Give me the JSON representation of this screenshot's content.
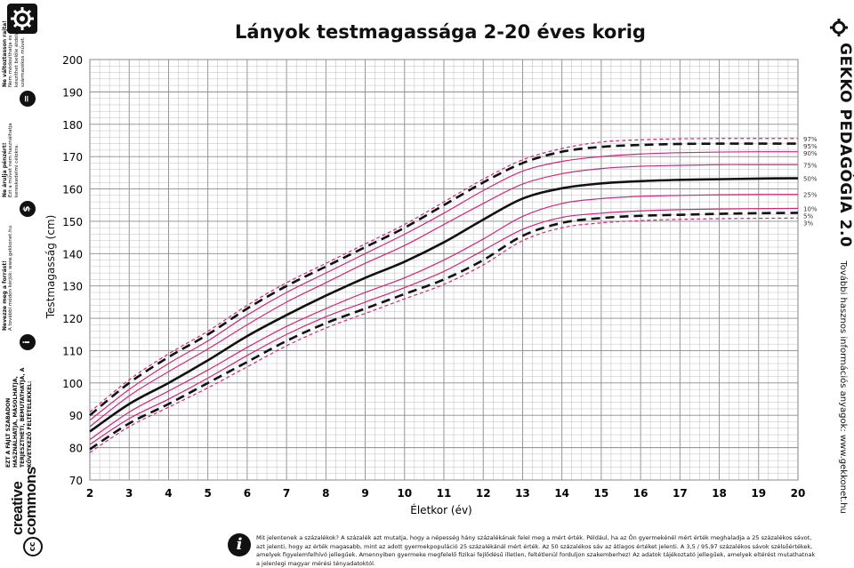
{
  "title": "Lányok testmagassága 2-20 éves korig",
  "brand": "GEKKO PEDAGÓGIA 2.0",
  "more_info": "További hasznos információs anyagok: www.gekkonet.hu",
  "footnote": "Mit jelentenek a százalékok? A százalék azt mutatja, hogy a népesség hány százalékának felel meg a mért érték. Például, ha az Ön gyermekénél mért érték meghaladja a 25 százalékos sávot, azt jelenti, hogy az érték magasabb, mint az adott gyermekpopuláció 25 százalékánál mért érték. Az 50 százalékos sáv az átlagos értéket jelenti. A 3,5 / 95,97 százalékos sávok szélsőértékek, amelyek figyelemfelhívó jellegűek. Amennyiben gyermeke megfelelő fizikai fejlődésű illetlen, feltétlenül forduljon szakemberhez! Az adatok tájékoztató jellegűek, amelyek eltérést mutathatnak a jelenlegi magyar mérési tényadatoktól.",
  "license": {
    "cc_logo": "creative commons",
    "cc_badge": "cc",
    "notice": "EZT A FÁJLT SZABADON HASZNÁLHATJA, MÁSOLHATJA, TERJESZTHETI, BEMUTATHATJA, A KÖVETKEZŐ FELTÉTELEKKEL:",
    "items": [
      {
        "head": "Nevezze meg a forrást!",
        "body": "A további módon kérjük: www.gekkonet.hu",
        "icon": "i"
      },
      {
        "head": "Ne árulja pénzért!",
        "body": "Ezt a művet nem használhatja kereskedelmi célokra.",
        "icon": "$"
      },
      {
        "head": "Ne változtasson rajta!",
        "body": "Nem módosíthatja és nem készíthet belőle átdolgozást, származékos művet.",
        "icon": "="
      }
    ]
  },
  "colors": {
    "grid_major": "#8a8a8a",
    "grid_minor": "#b9b9b9",
    "percentile_line": "#d0267f",
    "median_line": "#111111",
    "background": "#ffffff"
  },
  "chart_data": {
    "type": "line",
    "title": "Lányok testmagassága 2-20 éves korig",
    "xlabel": "Életkor (év)",
    "ylabel": "Testmagasság (cm)",
    "xlim": [
      2,
      20
    ],
    "ylim": [
      70,
      200
    ],
    "x_ticks": [
      "2",
      "3",
      "4",
      "5",
      "6",
      "7",
      "8",
      "9",
      "10",
      "11",
      "12",
      "13",
      "14",
      "15",
      "16",
      "17",
      "18",
      "19",
      "20"
    ],
    "y_ticks": [
      "70",
      "80",
      "90",
      "100",
      "110",
      "120",
      "130",
      "140",
      "150",
      "160",
      "170",
      "180",
      "190",
      "200"
    ],
    "grid": true,
    "x": [
      2,
      3,
      4,
      5,
      6,
      7,
      8,
      9,
      10,
      11,
      12,
      13,
      14,
      15,
      16,
      17,
      18,
      19,
      20
    ],
    "series": [
      {
        "name": "97%",
        "style": "pink-dashed",
        "values": [
          91,
          101,
          109,
          116,
          124,
          131,
          137,
          143,
          149,
          156,
          163,
          169,
          172.5,
          174.5,
          175.2,
          175.5,
          175.6,
          175.6,
          175.6
        ]
      },
      {
        "name": "95%",
        "style": "black-dashed",
        "values": [
          90,
          100,
          108,
          115,
          123,
          130,
          136,
          142,
          148,
          155,
          162,
          168,
          171.5,
          173,
          173.6,
          173.9,
          174.0,
          174.0,
          174.0
        ]
      },
      {
        "name": "90%",
        "style": "pink",
        "values": [
          88.5,
          98,
          106,
          113,
          121,
          128,
          134,
          140,
          146,
          152.5,
          159.5,
          165.5,
          168.5,
          170,
          170.8,
          171.2,
          171.4,
          171.5,
          171.5
        ]
      },
      {
        "name": "75%",
        "style": "pink",
        "values": [
          86.5,
          96,
          103.5,
          110.5,
          118,
          125,
          131,
          137,
          142.5,
          149,
          155.5,
          161.5,
          164.7,
          166.3,
          167,
          167.3,
          167.5,
          167.5,
          167.5
        ]
      },
      {
        "name": "50%",
        "style": "black",
        "values": [
          85,
          93.5,
          100,
          107,
          114.5,
          121,
          127,
          132.5,
          137.5,
          143.5,
          150.5,
          157,
          160.2,
          161.7,
          162.4,
          162.8,
          163,
          163.2,
          163.3
        ]
      },
      {
        "name": "25%",
        "style": "pink",
        "values": [
          82.5,
          91,
          97.5,
          104,
          111,
          117.5,
          123,
          128,
          132.5,
          138,
          144.5,
          151.5,
          155.5,
          157,
          157.7,
          158,
          158.2,
          158.3,
          158.3
        ]
      },
      {
        "name": "10%",
        "style": "pink",
        "values": [
          81,
          89,
          95,
          101.5,
          108.5,
          115,
          120.5,
          125,
          129.5,
          134.5,
          141,
          147.5,
          151.2,
          152.5,
          153.2,
          153.6,
          153.8,
          153.9,
          154.0
        ]
      },
      {
        "name": "5%",
        "style": "black-dashed",
        "values": [
          79.5,
          87.5,
          93.5,
          100,
          106.5,
          113,
          118.5,
          123,
          127.5,
          132,
          138,
          145.5,
          149.5,
          151,
          151.7,
          152,
          152.3,
          152.5,
          152.6
        ]
      },
      {
        "name": "3%",
        "style": "pink-dashed",
        "values": [
          78.5,
          86.5,
          92.5,
          98.5,
          105,
          111.5,
          117,
          121.5,
          126,
          130.5,
          136.5,
          144,
          148,
          149.5,
          150.2,
          150.6,
          150.8,
          150.9,
          151.0
        ]
      }
    ]
  }
}
